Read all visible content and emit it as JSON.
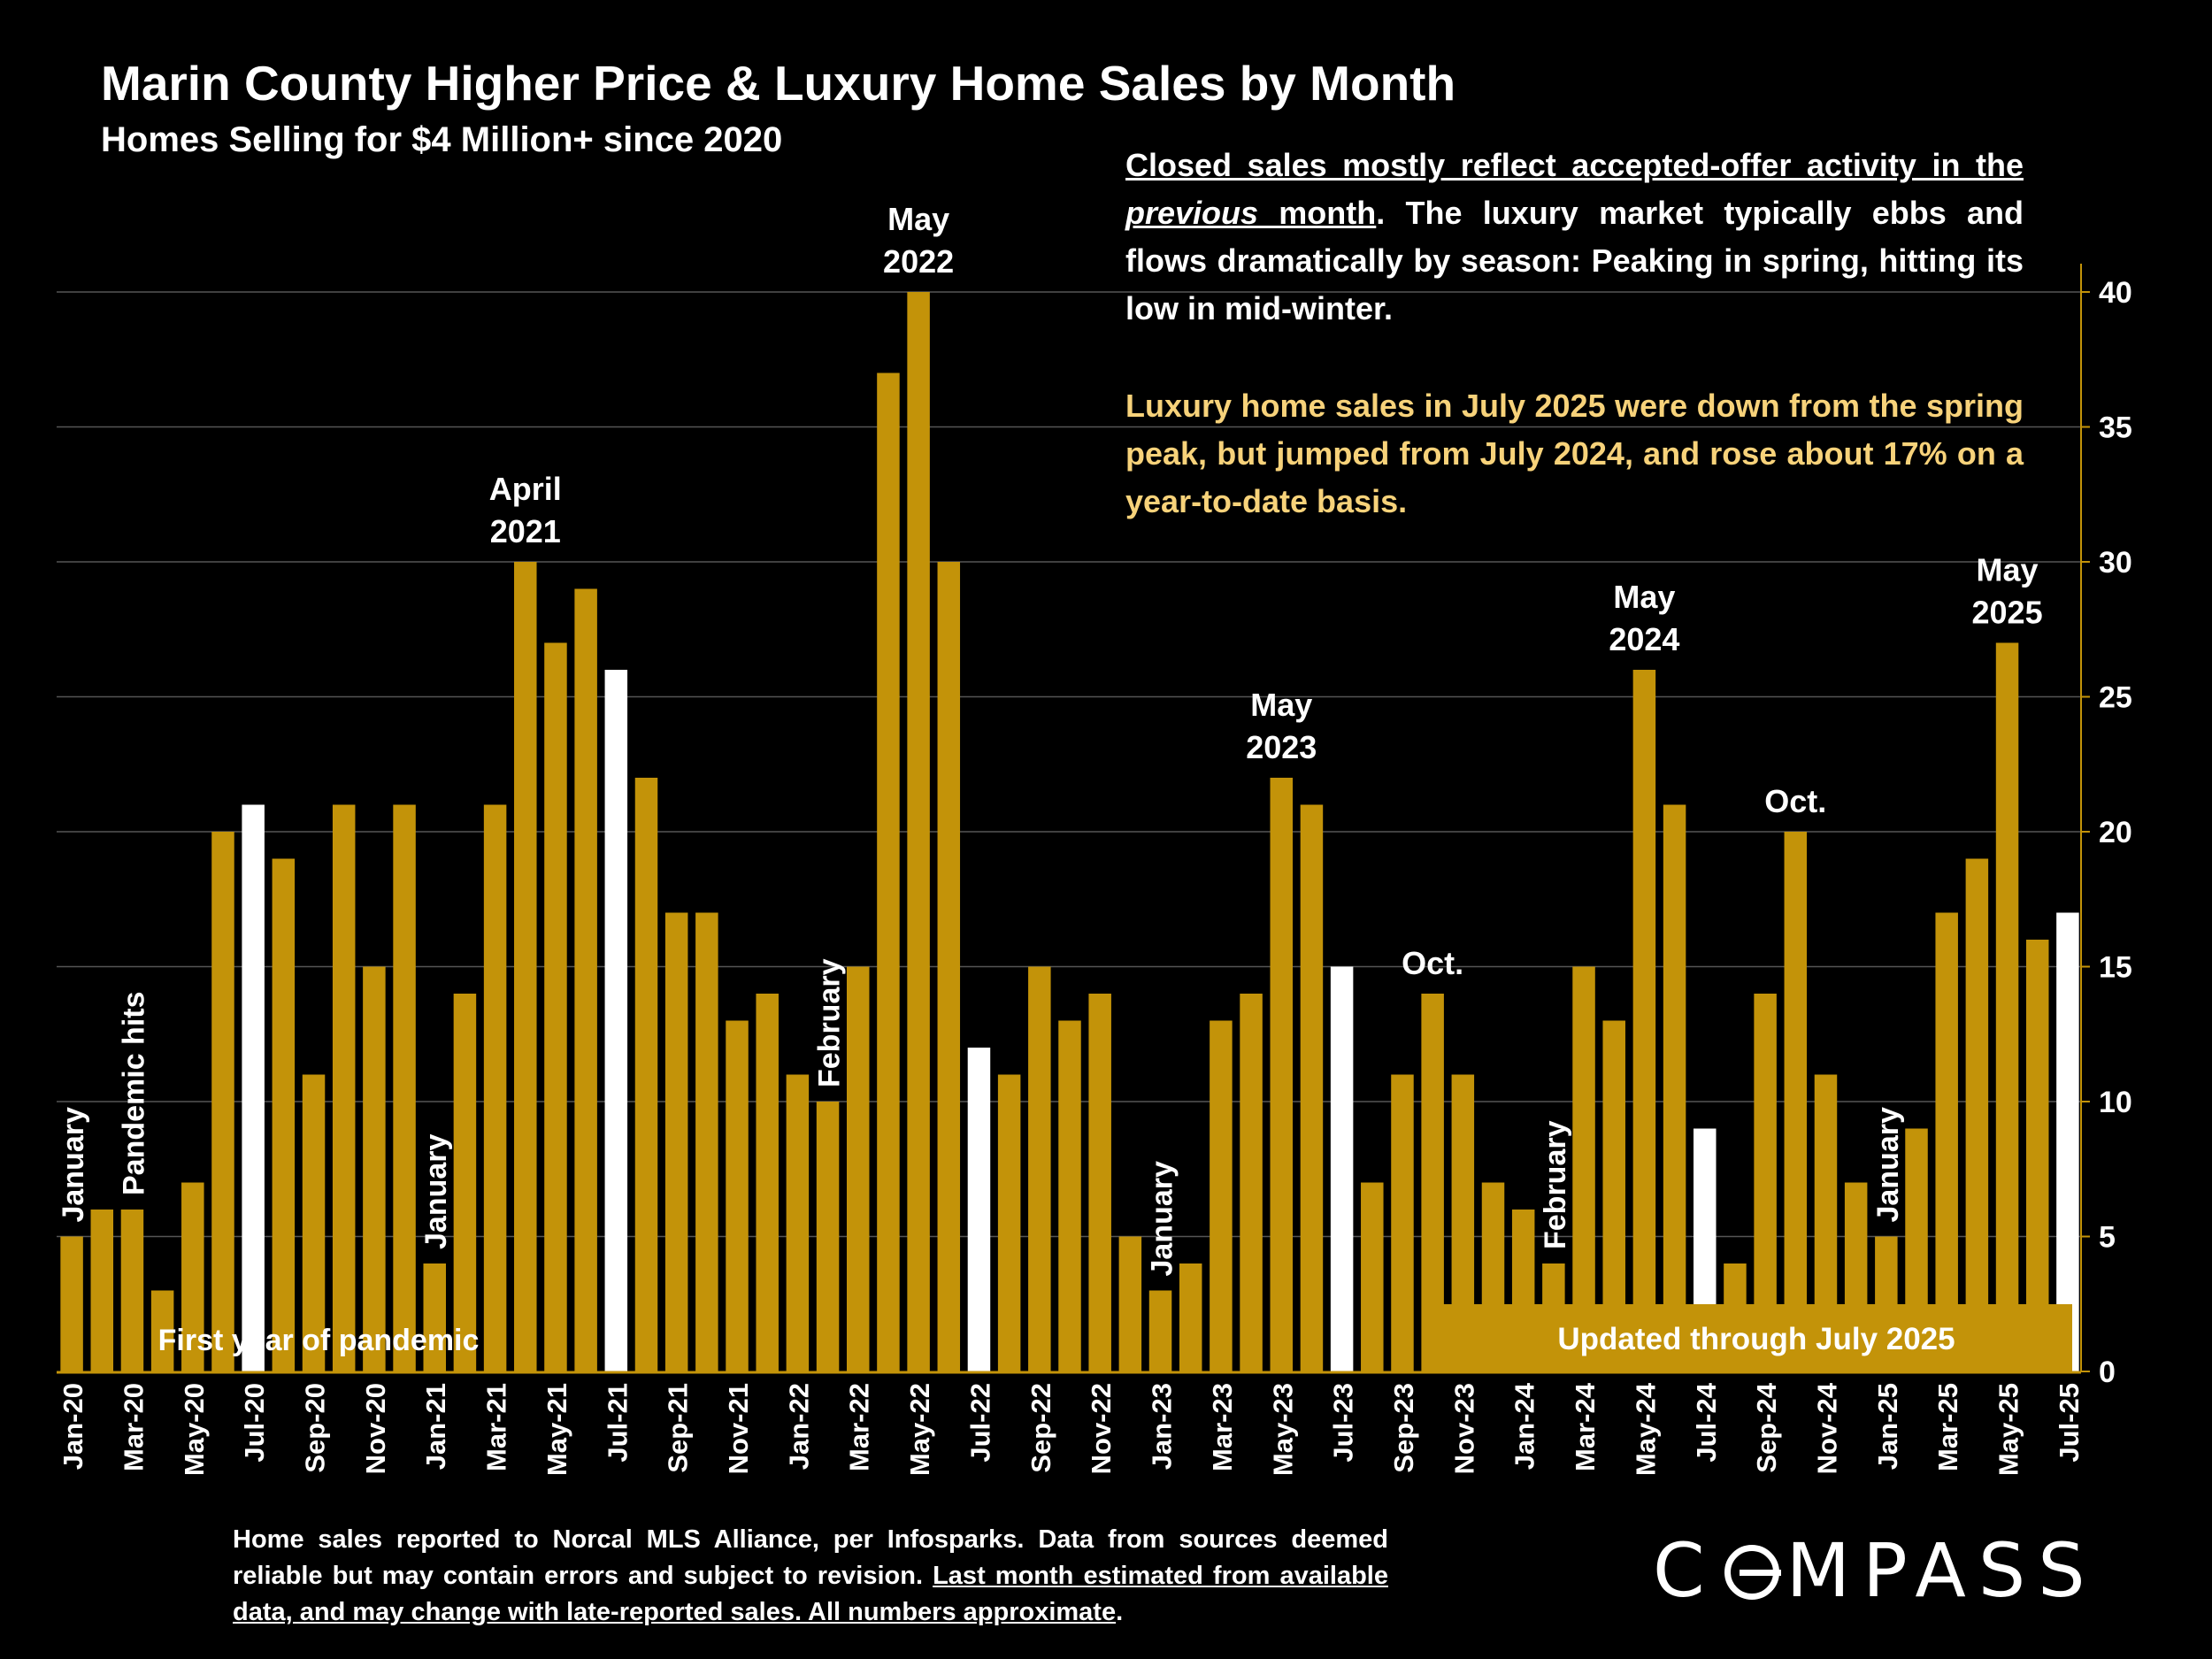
{
  "chart_data": {
    "type": "bar",
    "title": "Marin County Higher Price & Luxury Home Sales by Month",
    "subtitle": "Homes Selling for $4 Million+ since 2020",
    "ylim": [
      0,
      40
    ],
    "y_ticks": [
      "0",
      "5",
      "10",
      "15",
      "20",
      "25",
      "30",
      "35",
      "40"
    ],
    "y_axis_side": "right",
    "grid": true,
    "categories": [
      "Jan-20",
      "Feb-20",
      "Mar-20",
      "Apr-20",
      "May-20",
      "Jun-20",
      "Jul-20",
      "Aug-20",
      "Sep-20",
      "Oct-20",
      "Nov-20",
      "Dec-20",
      "Jan-21",
      "Feb-21",
      "Mar-21",
      "Apr-21",
      "May-21",
      "Jun-21",
      "Jul-21",
      "Aug-21",
      "Sep-21",
      "Oct-21",
      "Nov-21",
      "Dec-21",
      "Jan-22",
      "Feb-22",
      "Mar-22",
      "Apr-22",
      "May-22",
      "Jun-22",
      "Jul-22",
      "Aug-22",
      "Sep-22",
      "Oct-22",
      "Nov-22",
      "Dec-22",
      "Jan-23",
      "Feb-23",
      "Mar-23",
      "Apr-23",
      "May-23",
      "Jun-23",
      "Jul-23",
      "Aug-23",
      "Sep-23",
      "Oct-23",
      "Nov-23",
      "Dec-23",
      "Jan-24",
      "Feb-24",
      "Mar-24",
      "Apr-24",
      "May-24",
      "Jun-24",
      "Jul-24",
      "Aug-24",
      "Sep-24",
      "Oct-24",
      "Nov-24",
      "Dec-24",
      "Jan-25",
      "Feb-25",
      "Mar-25",
      "Apr-25",
      "May-25",
      "Jun-25",
      "Jul-25"
    ],
    "values": [
      5,
      6,
      6,
      3,
      7,
      20,
      21,
      19,
      11,
      21,
      15,
      21,
      4,
      14,
      21,
      30,
      27,
      29,
      26,
      22,
      17,
      17,
      13,
      14,
      11,
      10,
      15,
      37,
      40,
      30,
      12,
      11,
      15,
      13,
      14,
      5,
      3,
      4,
      13,
      14,
      22,
      21,
      15,
      7,
      11,
      14,
      11,
      7,
      6,
      4,
      15,
      13,
      26,
      21,
      9,
      4,
      14,
      20,
      11,
      7,
      5,
      9,
      17,
      19,
      27,
      16,
      17
    ],
    "highlight_color": "#ffffff",
    "bar_color": "#c39309",
    "highlighted_bars": [
      "Jul-20",
      "Jul-21",
      "Jul-22",
      "Jul-23",
      "Jul-24",
      "Jul-25"
    ],
    "annotations": [
      {
        "text": "January",
        "category": "Jan-20",
        "style": "vertical"
      },
      {
        "text": "Pandemic hits",
        "category": "Mar-20",
        "style": "vertical"
      },
      {
        "text": "January",
        "category": "Jan-21",
        "style": "vertical"
      },
      {
        "text": "April 2021",
        "category": "Apr-21",
        "style": "horizontal"
      },
      {
        "text": "February",
        "category": "Feb-22",
        "style": "vertical"
      },
      {
        "text": "May 2022",
        "category": "May-22",
        "style": "horizontal"
      },
      {
        "text": "January",
        "category": "Jan-23",
        "style": "vertical"
      },
      {
        "text": "May 2023",
        "category": "May-23",
        "style": "horizontal"
      },
      {
        "text": "Oct.",
        "category": "Oct-23",
        "style": "horizontal"
      },
      {
        "text": "February",
        "category": "Feb-24",
        "style": "vertical"
      },
      {
        "text": "May 2024",
        "category": "May-24",
        "style": "horizontal"
      },
      {
        "text": "Oct.",
        "category": "Oct-24",
        "style": "horizontal"
      },
      {
        "text": "January",
        "category": "Jan-25",
        "style": "vertical"
      },
      {
        "text": "May 2025",
        "category": "May-25",
        "style": "horizontal"
      }
    ],
    "bands": [
      {
        "text": "First year of pandemic"
      },
      {
        "text": "Updated through July 2025"
      }
    ]
  },
  "note1": {
    "p1": "Closed sales mostly reflect accepted-offer activity in the ",
    "p2": "previous",
    "p3": " month",
    "p4": ". The luxury market typically ebbs and flows dramatically by season: Peaking in spring, hitting its low in mid-winter."
  },
  "note2": "Luxury home sales in July 2025 were down from the spring peak, but jumped from July 2024, and rose about 17% on a year-to-date basis.",
  "footnote": {
    "plain": "Home sales reported to Norcal MLS Alliance, per Infosparks. Data from sources deemed reliable but may contain errors and subject to revision.  ",
    "underlined": "Last month estimated from available data, and may change with late-reported sales. All numbers approximate",
    "end": "."
  },
  "logo": {
    "left": "C",
    "right": "MPASS"
  }
}
